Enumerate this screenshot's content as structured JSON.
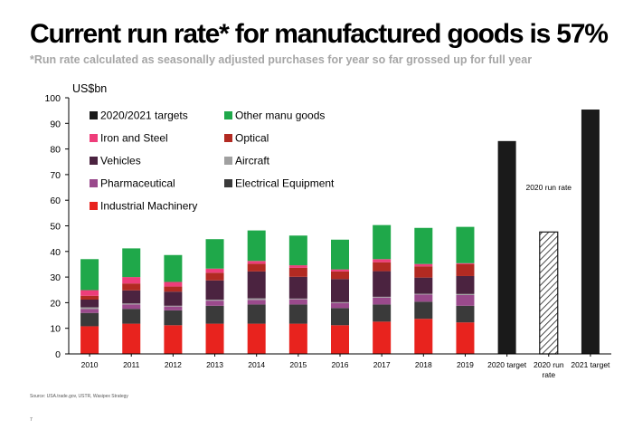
{
  "title": "Current run rate* for manufactured goods is 57%",
  "subtitle": "*Run rate calculated as seasonally adjusted purchases for year so far grossed up for full year",
  "source": "Source: USA.trade.gov, USTR, Wasipex Strategy",
  "page_number": "7",
  "chart_data": {
    "type": "bar",
    "stacked": true,
    "unit_label": "US$bn",
    "ylim": [
      0,
      100
    ],
    "yticks": [
      0,
      10,
      20,
      30,
      40,
      50,
      60,
      70,
      80,
      90,
      100
    ],
    "grid": false,
    "legend_position": "top-left",
    "categories": [
      "2010",
      "2011",
      "2012",
      "2013",
      "2014",
      "2015",
      "2016",
      "2017",
      "2018",
      "2019",
      "2020 target",
      "2020 run rate",
      "2021 target"
    ],
    "series": [
      {
        "name": "Industrial Machinery",
        "color": "#e8231e",
        "values": [
          10.8,
          11.8,
          11.2,
          11.8,
          11.8,
          11.8,
          11.2,
          12.6,
          13.7,
          12.3,
          0,
          0,
          0
        ]
      },
      {
        "name": "Electrical Equipment",
        "color": "#3a3a3a",
        "values": [
          5.2,
          5.8,
          5.8,
          7.0,
          7.5,
          7.5,
          6.7,
          6.7,
          6.7,
          6.5,
          0,
          0,
          0
        ]
      },
      {
        "name": "Pharmaceutical",
        "color": "#9a4a8c",
        "values": [
          1.5,
          1.7,
          1.5,
          2.0,
          1.8,
          2.0,
          2.0,
          2.7,
          2.8,
          4.2,
          0,
          0,
          0
        ]
      },
      {
        "name": "Aircraft",
        "color": "#a0a0a0",
        "values": [
          0.7,
          0.4,
          0.3,
          0.4,
          0.6,
          0.3,
          0.3,
          0.3,
          0.3,
          0.4,
          0,
          0,
          0
        ]
      },
      {
        "name": "Vehicles",
        "color": "#4b2340",
        "values": [
          3.0,
          5.1,
          5.5,
          7.5,
          10.5,
          8.5,
          9.0,
          10.0,
          6.3,
          7.0,
          0,
          0,
          0
        ]
      },
      {
        "name": "Optical",
        "color": "#b22a22",
        "values": [
          1.5,
          2.7,
          2.0,
          3.0,
          3.0,
          3.5,
          3.0,
          3.5,
          4.4,
          4.6,
          0,
          0,
          0
        ]
      },
      {
        "name": "Iron and Steel",
        "color": "#ee3d7a",
        "values": [
          2.2,
          2.5,
          1.8,
          1.6,
          1.1,
          1.0,
          0.8,
          1.2,
          0.9,
          0.4,
          0,
          0,
          0
        ]
      },
      {
        "name": "Other manu goods",
        "color": "#1fa84a",
        "values": [
          12.1,
          11.2,
          10.5,
          11.5,
          11.9,
          11.6,
          11.6,
          13.3,
          14.1,
          14.2,
          0,
          0,
          0
        ]
      },
      {
        "name": "2020/2021 targets",
        "color": "#1a1a1a",
        "values": [
          0,
          0,
          0,
          0,
          0,
          0,
          0,
          0,
          0,
          0,
          83.1,
          47.6,
          95.4
        ]
      }
    ],
    "hatched_categories": [
      "2020 run rate"
    ],
    "annotations": [
      {
        "text": "2020 run rate",
        "category": "2020 run rate",
        "y": 65
      }
    ]
  }
}
